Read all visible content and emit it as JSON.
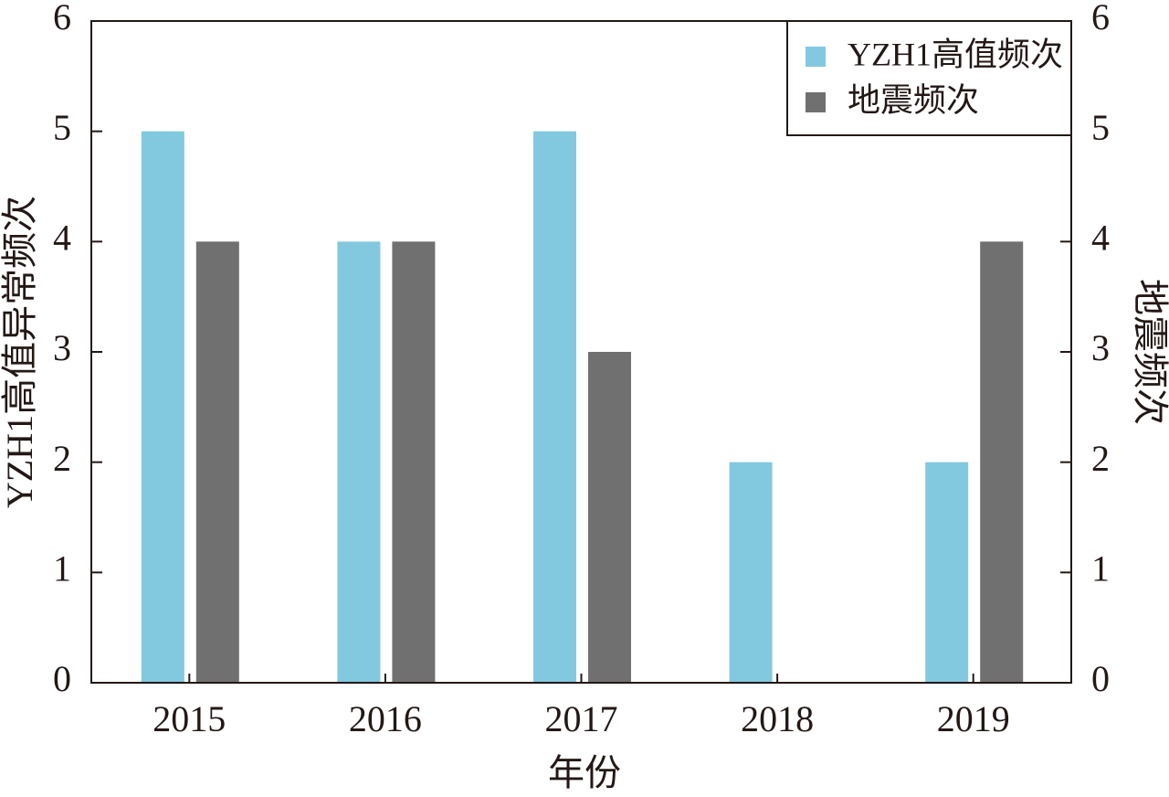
{
  "chart_data": {
    "type": "bar",
    "x_label": "年份",
    "y_label": "YZH1高值异常频次",
    "y2_label": "地震频次",
    "categories": [
      "2015",
      "2016",
      "2017",
      "2018",
      "2019"
    ],
    "series": [
      {
        "name": "YZH1高值频次",
        "color": "#82c8df",
        "values": [
          5,
          4,
          5,
          2,
          2
        ]
      },
      {
        "name": "地震频次",
        "color": "#717071",
        "values": [
          4,
          4,
          3,
          0,
          4
        ],
        "axis": "y2"
      }
    ],
    "ylim": [
      0,
      6
    ],
    "yticks": [
      0,
      1,
      2,
      3,
      4,
      5,
      6
    ],
    "y2lim": [
      0,
      6
    ],
    "y2ticks": [
      0,
      1,
      2,
      3,
      4,
      5,
      6
    ],
    "legend": "upper right"
  }
}
